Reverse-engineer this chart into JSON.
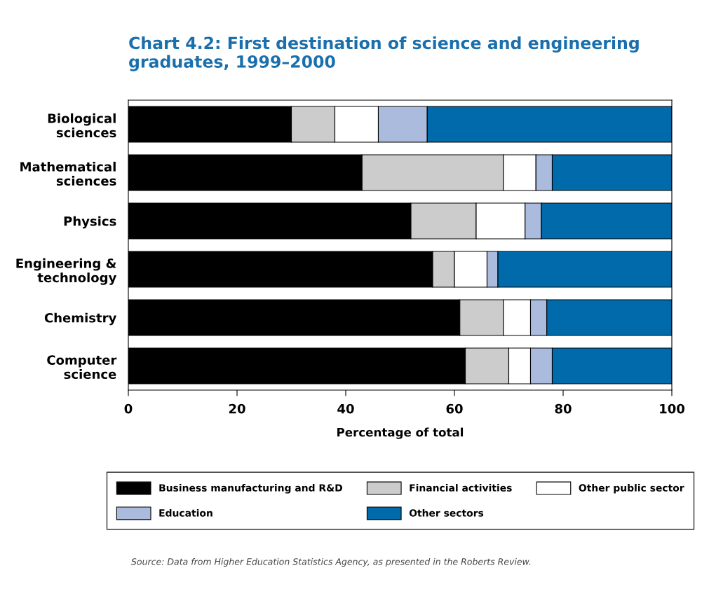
{
  "chart_data": {
    "type": "bar",
    "orientation": "horizontal",
    "stacked": true,
    "title": "Chart 4.2: First destination of science and engineering graduates, 1999–2000",
    "xlabel": "Percentage of total",
    "categories": [
      "Biological\nsciences",
      "Mathematical\nsciences",
      "Physics",
      "Engineering &\ntechnology",
      "Chemistry",
      "Computer\nscience"
    ],
    "series": [
      {
        "name": "Business manufacturing and R&D",
        "color": "#000000",
        "values": [
          30,
          43,
          52,
          56,
          61,
          62
        ]
      },
      {
        "name": "Financial activities",
        "color": "#cccccc",
        "values": [
          8,
          26,
          12,
          4,
          8,
          8
        ]
      },
      {
        "name": "Other public sector",
        "color": "#ffffff",
        "values": [
          8,
          6,
          9,
          6,
          5,
          4
        ]
      },
      {
        "name": "Education",
        "color": "#aabbdd",
        "values": [
          9,
          3,
          3,
          2,
          3,
          4
        ]
      },
      {
        "name": "Other sectors",
        "color": "#006aaa",
        "values": [
          45,
          22,
          24,
          32,
          23,
          22
        ]
      }
    ],
    "xlim": [
      0,
      100
    ],
    "xticks": [
      0,
      20,
      40,
      60,
      80,
      100
    ],
    "grid": false,
    "legend": "bottom",
    "annotations": [
      "Source: Data from Higher Education Statistics Agency, as presented in the Roberts Review."
    ]
  }
}
